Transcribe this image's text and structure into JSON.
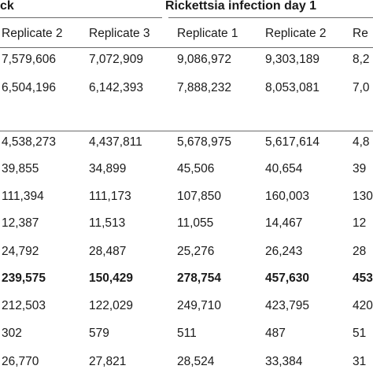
{
  "group_headers": {
    "left": "ck",
    "right": "Rickettsia infection day 1"
  },
  "columns": [
    "",
    "Replicate 2",
    "Replicate 3",
    "Replicate 1",
    "Replicate 2",
    "Re"
  ],
  "rows": [
    {
      "cells": [
        "7,579,606",
        "7,072,909",
        "9,086,972",
        "9,303,189",
        "8,2"
      ],
      "bold": false
    },
    {
      "cells": [
        "6,504,196",
        "6,142,393",
        "7,888,232",
        "8,053,081",
        "7,0"
      ],
      "bold": false
    },
    {
      "cells": [
        "4,538,273",
        "4,437,811",
        "5,678,975",
        "5,617,614",
        "4,8"
      ],
      "bold": false
    },
    {
      "cells": [
        "39,855",
        "34,899",
        "45,506",
        "40,654",
        "39"
      ],
      "bold": false
    },
    {
      "cells": [
        "111,394",
        "111,173",
        "107,850",
        "160,003",
        "130"
      ],
      "bold": false
    },
    {
      "cells": [
        "12,387",
        "11,513",
        "11,055",
        "14,467",
        "12"
      ],
      "bold": false
    },
    {
      "cells": [
        "24,792",
        "28,487",
        "25,276",
        "26,243",
        "28"
      ],
      "bold": false
    },
    {
      "cells": [
        "239,575",
        "150,429",
        "278,754",
        "457,630",
        "453"
      ],
      "bold": true
    },
    {
      "cells": [
        "212,503",
        "122,029",
        "249,710",
        "423,795",
        "420"
      ],
      "bold": false
    },
    {
      "cells": [
        "302",
        "579",
        "511",
        "487",
        "51"
      ],
      "bold": false
    },
    {
      "cells": [
        "26,770",
        "27,821",
        "28,524",
        "33,384",
        "31"
      ],
      "bold": false
    }
  ]
}
